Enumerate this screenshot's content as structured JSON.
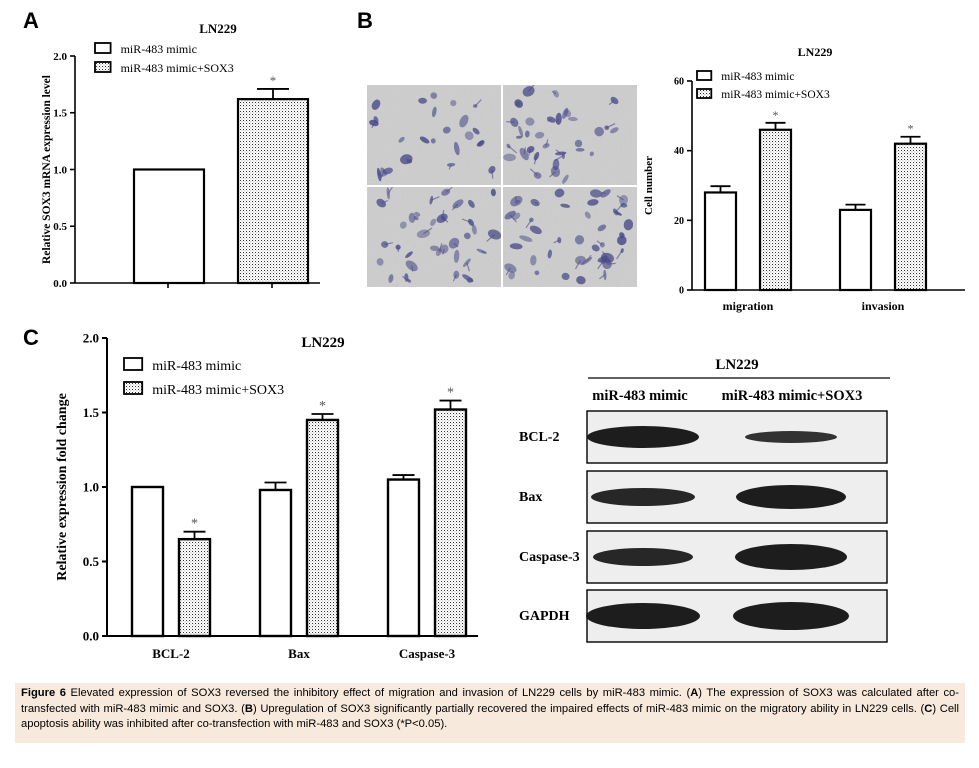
{
  "panels": {
    "a": "A",
    "b": "B",
    "c": "C"
  },
  "caption": {
    "fig_label": "Figure 6",
    "part1": " Elevated expression of SOX3 reversed the inhibitory effect of migration and invasion of LN229 cells by miR-483 mimic. (",
    "a": "A",
    "part2": ") The expression of SOX3 was calculated after co-transfected with miR-483 mimic and SOX3. (",
    "b": "B",
    "part3": ") Upregulation of SOX3 significantly partially recovered the impaired effects of miR-483 mimic on the migratory ability in LN229 cells. (",
    "c": "C",
    "part4": ") Cell apoptosis ability was inhibited after co-transfection with miR-483 and SOX3 (*P<0.05)."
  },
  "colors": {
    "bar_fill": "#ffffff",
    "stipple": "#000000",
    "caption_bg": "#f7e9dc",
    "stain": "#4a4a8a"
  },
  "chart_data": [
    {
      "type": "bar",
      "panel": "A",
      "title": "LN229",
      "ylabel": "Relative SOX3 mRNA expression level",
      "xlabel": "",
      "ylim": [
        0,
        2.0
      ],
      "yticks": [
        "0.0",
        "0.5",
        "1.0",
        "1.5",
        "2.0"
      ],
      "legend": [
        "miR-483 mimic",
        "miR-483 mimic+SOX3"
      ],
      "legend_position": "top-left",
      "categories": [
        ""
      ],
      "series": [
        {
          "name": "miR-483 mimic",
          "values": [
            1.0
          ],
          "errors": [
            0
          ],
          "pattern": "plain"
        },
        {
          "name": "miR-483 mimic+SOX3",
          "values": [
            1.62
          ],
          "errors": [
            0.09
          ],
          "pattern": "dotted",
          "annotation": "*"
        }
      ]
    },
    {
      "type": "bar",
      "panel": "B",
      "title": "LN229",
      "ylabel": "Cell number",
      "xlabel": "",
      "ylim": [
        0,
        60
      ],
      "yticks": [
        "0",
        "20",
        "40",
        "60"
      ],
      "legend": [
        "miR-483 mimic",
        "miR-483 mimic+SOX3"
      ],
      "legend_position": "top-left",
      "categories": [
        "migration",
        "invasion"
      ],
      "series": [
        {
          "name": "miR-483 mimic",
          "values": [
            28,
            23
          ],
          "errors": [
            1.8,
            1.5
          ],
          "pattern": "plain"
        },
        {
          "name": "miR-483 mimic+SOX3",
          "values": [
            46,
            42
          ],
          "errors": [
            2.0,
            2.0
          ],
          "pattern": "dotted",
          "annotation": "*"
        }
      ]
    },
    {
      "type": "bar",
      "panel": "C",
      "title": "LN229",
      "ylabel": "Relative expression fold change",
      "xlabel": "",
      "ylim": [
        0,
        2.0
      ],
      "yticks": [
        "0.0",
        "0.5",
        "1.0",
        "1.5",
        "2.0"
      ],
      "legend": [
        "miR-483 mimic",
        "miR-483 mimic+SOX3"
      ],
      "legend_position": "top-left",
      "categories": [
        "BCL-2",
        "Bax",
        "Caspase-3"
      ],
      "series": [
        {
          "name": "miR-483 mimic",
          "values": [
            1.0,
            0.98,
            1.05
          ],
          "errors": [
            0,
            0.05,
            0.03
          ],
          "pattern": "plain"
        },
        {
          "name": "miR-483 mimic+SOX3",
          "values": [
            0.65,
            1.45,
            1.52
          ],
          "errors": [
            0.05,
            0.04,
            0.06
          ],
          "pattern": "dotted",
          "annotation": "*"
        }
      ]
    }
  ],
  "western_blot": {
    "title": "LN229",
    "columns": [
      "miR-483 mimic",
      "miR-483 mimic+SOX3"
    ],
    "rows": [
      "BCL-2",
      "Bax",
      "Caspase-3",
      "GAPDH"
    ]
  }
}
